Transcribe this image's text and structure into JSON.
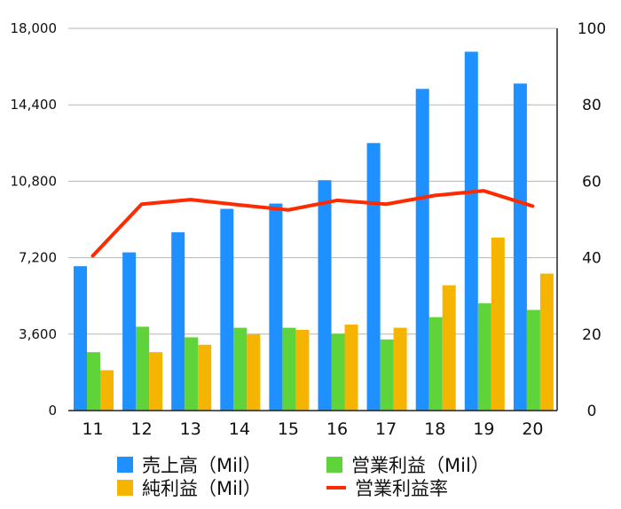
{
  "chart_data": {
    "type": "bar",
    "categories": [
      "11",
      "12",
      "13",
      "14",
      "15",
      "16",
      "17",
      "18",
      "19",
      "20"
    ],
    "y_left": {
      "ticks": [
        "0",
        "3,600",
        "7,200",
        "10,800",
        "14,400",
        "18,000"
      ],
      "range": [
        0,
        18000
      ]
    },
    "y_right": {
      "ticks": [
        "0",
        "20",
        "40",
        "60",
        "80",
        "100"
      ],
      "range": [
        0,
        100
      ]
    },
    "series": [
      {
        "name": "売上高（Mil）",
        "type": "bar",
        "axis": "left",
        "color": "#1E90FF",
        "values": [
          6800,
          7450,
          8400,
          9500,
          9750,
          10850,
          12600,
          15150,
          16900,
          15400
        ]
      },
      {
        "name": "営業利益（Mil）",
        "type": "bar",
        "axis": "left",
        "color": "#5ED33A",
        "values": [
          2750,
          3950,
          3450,
          3900,
          3900,
          3620,
          3350,
          4400,
          5050,
          4740
        ]
      },
      {
        "name": "純利益（Mil）",
        "type": "bar",
        "axis": "left",
        "color": "#F4B400",
        "values": [
          1900,
          2750,
          3100,
          3600,
          3800,
          4050,
          3900,
          5900,
          8150,
          6450
        ]
      },
      {
        "name": "営業利益率",
        "type": "line",
        "axis": "right",
        "color": "#FF2A00",
        "values": [
          40.5,
          54,
          55.2,
          53.8,
          52.5,
          55,
          54,
          56.3,
          57.5,
          53.5
        ]
      }
    ],
    "legend_position": "bottom",
    "grid": true
  }
}
